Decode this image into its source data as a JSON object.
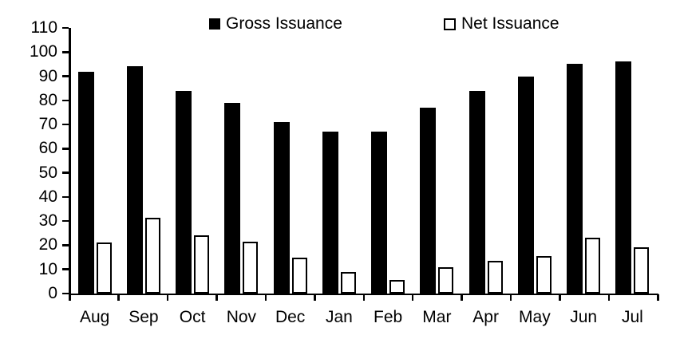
{
  "chart_data": {
    "type": "bar",
    "title": "",
    "xlabel": "",
    "ylabel": "",
    "categories": [
      "Aug",
      "Sep",
      "Oct",
      "Nov",
      "Dec",
      "Jan",
      "Feb",
      "Mar",
      "Apr",
      "May",
      "Jun",
      "Jul"
    ],
    "series": [
      {
        "name": "Gross Issuance",
        "values": [
          92,
          94,
          84,
          79,
          71,
          67,
          67,
          77,
          84,
          90,
          95,
          96
        ],
        "fill": "#000000",
        "border": "#000000",
        "swatch": "filled-square"
      },
      {
        "name": "Net Issuance",
        "values": [
          21,
          31.5,
          24,
          21.5,
          15,
          9,
          5.5,
          11,
          13.5,
          15.5,
          23,
          19
        ],
        "fill": "#ffffff",
        "border": "#000000",
        "swatch": "hollow-square"
      }
    ],
    "ylim": [
      0,
      110
    ],
    "yticks": [
      0,
      10,
      20,
      30,
      40,
      50,
      60,
      70,
      80,
      90,
      100,
      110
    ],
    "grid": false,
    "legend_position": "top",
    "axis_color": "#000000",
    "background_color": "#ffffff"
  }
}
